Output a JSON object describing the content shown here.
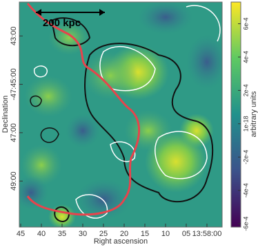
{
  "chart_data": {
    "type": "image",
    "xlabel": "Right ascension",
    "ylabel": "Declination",
    "colorbar_label": "arbitrary units",
    "annotation": "200 kpc",
    "xlim": [
      45.33,
      -3.67
    ],
    "xticks": [
      45,
      40,
      35,
      30,
      25,
      20,
      15,
      10,
      {
        "value": 5,
        "label": "05"
      },
      {
        "value": 0,
        "label": "13:58:00"
      }
    ],
    "ylim": [
      41.6,
      50.9
    ],
    "yticks": [
      {
        "value": 43,
        "label": "43:00"
      },
      {
        "value": 45,
        "label": "-47:45:00"
      },
      {
        "value": 47,
        "label": "47:00"
      },
      {
        "value": 49,
        "label": "49:00"
      }
    ],
    "zlim": [
      -0.00062,
      0.00073
    ],
    "zticks": [
      {
        "value": 0.0006,
        "label": "6e-4"
      },
      {
        "value": 0.0004,
        "label": "4e-4"
      },
      {
        "value": 0.0002,
        "label": "2e-4"
      },
      {
        "value": 1e-18,
        "label": "1e-18"
      },
      {
        "value": -0.0002,
        "label": "-2e-4"
      },
      {
        "value": -0.0004,
        "label": "-4e-4"
      },
      {
        "value": -0.0006,
        "label": "-6e-4"
      }
    ]
  }
}
